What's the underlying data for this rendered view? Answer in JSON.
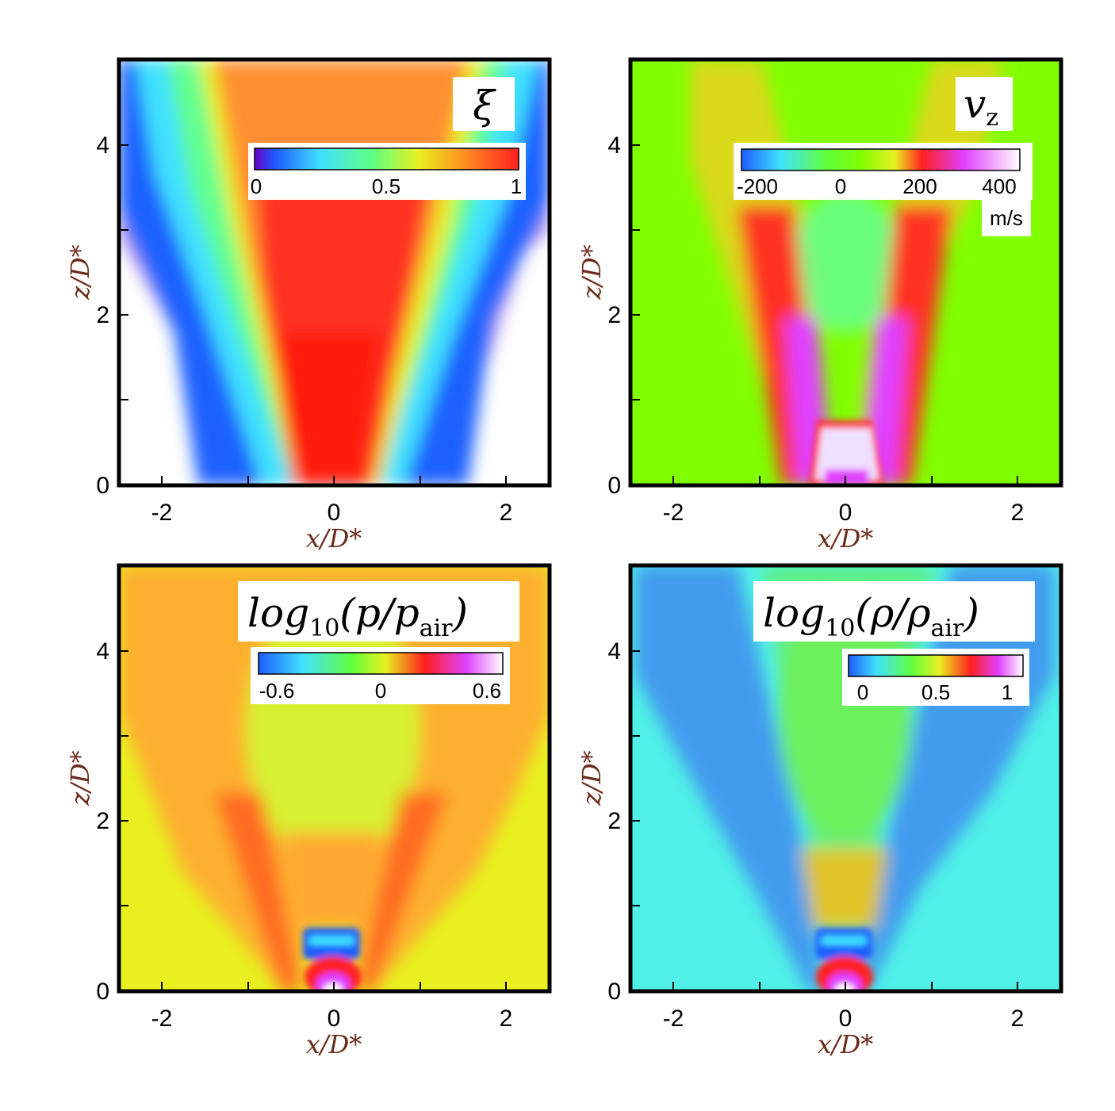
{
  "chart_data": [
    {
      "type": "heatmap",
      "field": "ξ",
      "xlabel": "x/D*",
      "ylabel": "z/D*",
      "xlim": [
        -2.5,
        2.5
      ],
      "ylim": [
        0,
        5
      ],
      "xticks": [
        "-2",
        "0",
        "2"
      ],
      "yticks": [
        "0",
        "2",
        "4"
      ],
      "colorbar": {
        "ticks": [
          "0",
          "0.5",
          "1"
        ],
        "range": [
          0,
          1
        ],
        "unit": "",
        "colors": [
          "#6a00c8",
          "#1e5cff",
          "#40e0ff",
          "#60ff80",
          "#e8f020",
          "#ff8c20",
          "#ff2020"
        ]
      }
    },
    {
      "type": "heatmap",
      "field": "v_z",
      "xlabel": "x/D*",
      "ylabel": "z/D*",
      "xlim": [
        -2.5,
        2.5
      ],
      "ylim": [
        0,
        5
      ],
      "xticks": [
        "-2",
        "0",
        "2"
      ],
      "yticks": [
        "0",
        "2",
        "4"
      ],
      "colorbar": {
        "ticks": [
          "-200",
          "0",
          "200",
          "400"
        ],
        "range": [
          -250,
          450
        ],
        "unit": "m/s",
        "colors": [
          "#1e5cff",
          "#40e0ff",
          "#60ff40",
          "#80ff00",
          "#e8f020",
          "#ff2020",
          "#e040ff",
          "#ffffff"
        ]
      }
    },
    {
      "type": "heatmap",
      "field": "log10(p/p_air)",
      "xlabel": "x/D*",
      "ylabel": "z/D*",
      "xlim": [
        -2.5,
        2.5
      ],
      "ylim": [
        0,
        5
      ],
      "xticks": [
        "-2",
        "0",
        "2"
      ],
      "yticks": [
        "0",
        "2",
        "4"
      ],
      "colorbar": {
        "ticks": [
          "-0.6",
          "0",
          "0.6"
        ],
        "range": [
          -0.8,
          0.8
        ],
        "unit": "",
        "colors": [
          "#1e5cff",
          "#40e0ff",
          "#60ff40",
          "#e8f020",
          "#ff2020",
          "#e040ff",
          "#ffffff"
        ]
      }
    },
    {
      "type": "heatmap",
      "field": "log10(ρ/ρ_air)",
      "xlabel": "x/D*",
      "ylabel": "z/D*",
      "xlim": [
        -2.5,
        2.5
      ],
      "ylim": [
        0,
        5
      ],
      "xticks": [
        "-2",
        "0",
        "2"
      ],
      "yticks": [
        "0",
        "2",
        "4"
      ],
      "colorbar": {
        "ticks": [
          "0",
          "0.5",
          "1"
        ],
        "range": [
          -0.15,
          1.15
        ],
        "unit": "",
        "colors": [
          "#1e5cff",
          "#40e0ff",
          "#60ff40",
          "#e8f020",
          "#ff2020",
          "#e040ff",
          "#ffffff"
        ]
      }
    }
  ],
  "labels": {
    "xi": "ξ",
    "vz_main": "v",
    "vz_sub": "z",
    "log": "log",
    "ten": "10",
    "p_open": "(",
    "p": "p",
    "slash": "/",
    "rho": "ρ",
    "air": "air",
    "p_close": ")",
    "xlabel": "x/D*",
    "ylabel": "z/D*",
    "ms": "m/s"
  }
}
